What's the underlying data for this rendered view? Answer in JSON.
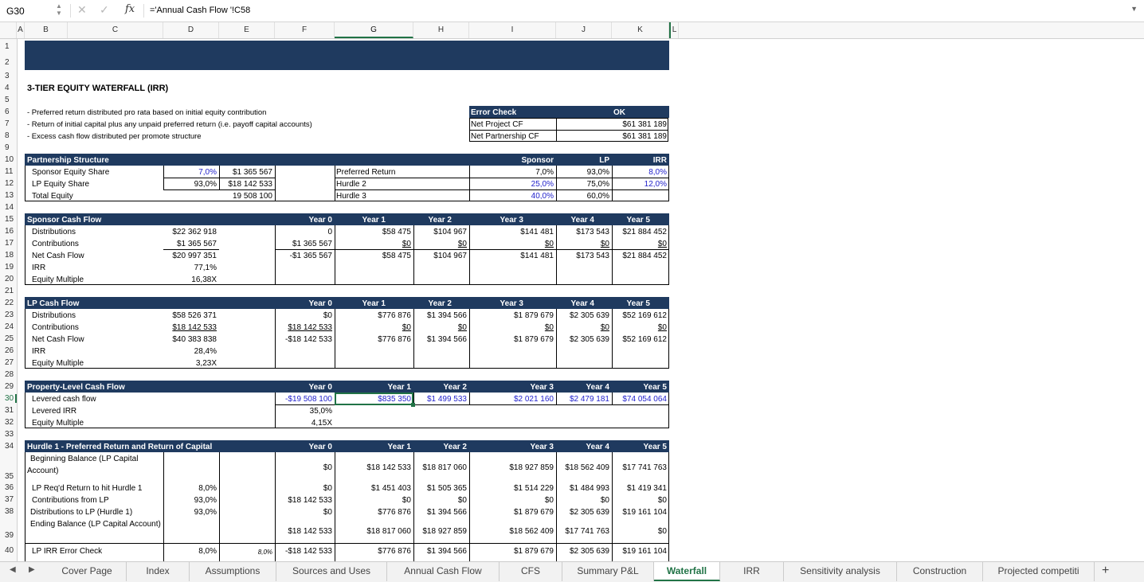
{
  "formula_bar": {
    "cell_ref": "G30",
    "formula": "='Annual Cash Flow '!C58"
  },
  "columns": [
    "A",
    "B",
    "C",
    "D",
    "E",
    "F",
    "G",
    "H",
    "I",
    "J",
    "K",
    "L"
  ],
  "rows": [
    "1",
    "2",
    "3",
    "4",
    "5",
    "6",
    "7",
    "8",
    "9",
    "10",
    "11",
    "12",
    "13",
    "14",
    "15",
    "16",
    "17",
    "18",
    "19",
    "20",
    "21",
    "22",
    "23",
    "24",
    "25",
    "26",
    "27",
    "28",
    "29",
    "30",
    "31",
    "32",
    "33",
    "34",
    "35",
    "36",
    "37",
    "38",
    "39",
    "40"
  ],
  "sheet": {
    "title": "3-TIER EQUITY WATERFALL (IRR)",
    "notes": [
      "- Preferred return distributed pro rata based on initial equity contribution",
      "- Return of initial capital plus any unpaid preferred return (i.e. payoff capital accounts)",
      "- Excess cash flow distributed per promote structure"
    ],
    "error_check": {
      "label": "Error Check",
      "status": "OK",
      "r1_label": "Net Project CF",
      "r1_value": "$61 381 189",
      "r2_label": "Net Partnership CF",
      "r2_value": "$61 381 189"
    },
    "partnership": {
      "title": "Partnership Structure",
      "sponsor_label": "Sponsor Equity Share",
      "sponsor_pct": "7,0%",
      "sponsor_amt": "$1 365 567",
      "lp_label": "LP Equity Share",
      "lp_pct": "93,0%",
      "lp_amt": "$18 142 533",
      "total_label": "Total Equity",
      "total_amt": "19 508 100",
      "h_sponsor": "Sponsor",
      "h_lp": "LP",
      "h_irr": "IRR",
      "tiers": [
        {
          "label": "Preferred Return",
          "sponsor": "7,0%",
          "lp": "93,0%",
          "irr": "8,0%"
        },
        {
          "label": "Hurdle 2",
          "sponsor": "25,0%",
          "lp": "75,0%",
          "irr": "12,0%"
        },
        {
          "label": "Hurdle 3",
          "sponsor": "40,0%",
          "lp": "60,0%",
          "irr": ""
        }
      ]
    },
    "years": [
      "Year 0",
      "Year 1",
      "Year 2",
      "Year 3",
      "Year 4",
      "Year 5"
    ],
    "sponsor_cf": {
      "title": "Sponsor Cash Flow",
      "dist": {
        "label": "Distributions",
        "total": "$22 362 918",
        "vals": [
          "0",
          "$58 475",
          "$104 967",
          "$141 481",
          "$173 543",
          "$21 884 452"
        ]
      },
      "contrib": {
        "label": "Contributions",
        "total": "$1 365 567",
        "vals": [
          "$1 365 567",
          "$0",
          "$0",
          "$0",
          "$0",
          "$0"
        ]
      },
      "net": {
        "label": "Net Cash Flow",
        "total": "$20 997 351",
        "vals": [
          "-$1 365 567",
          "$58 475",
          "$104 967",
          "$141 481",
          "$173 543",
          "$21 884 452"
        ]
      },
      "irr_label": "IRR",
      "irr": "77,1%",
      "em_label": "Equity Multiple",
      "em": "16,38X"
    },
    "lp_cf": {
      "title": "LP Cash Flow",
      "dist": {
        "label": "Distributions",
        "total": "$58 526 371",
        "vals": [
          "$0",
          "$776 876",
          "$1 394 566",
          "$1 879 679",
          "$2 305 639",
          "$52 169 612"
        ]
      },
      "contrib": {
        "label": "Contributions",
        "total": "$18 142 533",
        "vals": [
          "$18 142 533",
          "$0",
          "$0",
          "$0",
          "$0",
          "$0"
        ]
      },
      "net": {
        "label": "Net Cash Flow",
        "total": "$40 383 838",
        "vals": [
          "-$18 142 533",
          "$776 876",
          "$1 394 566",
          "$1 879 679",
          "$2 305 639",
          "$52 169 612"
        ]
      },
      "irr_label": "IRR",
      "irr": "28,4%",
      "em_label": "Equity Multiple",
      "em": "3,23X"
    },
    "property_cf": {
      "title": "Property-Level Cash Flow",
      "levered_label": "Levered cash flow",
      "levered": [
        "-$19 508 100",
        "$835 350",
        "$1 499 533",
        "$2 021 160",
        "$2 479 181",
        "$74 054 064"
      ],
      "irr_label": "Levered IRR",
      "irr": "35,0%",
      "em_label": "Equity Multiple",
      "em": "4,15X"
    },
    "hurdle1": {
      "title": "Hurdle 1 - Preferred Return and Return of Capital",
      "beg_label_1": "Beginning Balance (LP Capital",
      "beg_label_2": "Account)",
      "beg": [
        "$0",
        "$18 142 533",
        "$18 817 060",
        "$18 927 859",
        "$18 562 409",
        "$17 741 763"
      ],
      "req_label": "LP Req'd Return to hit Hurdle 1",
      "req_pct": "8,0%",
      "req": [
        "$0",
        "$1 451 403",
        "$1 505 365",
        "$1 514 229",
        "$1 484 993",
        "$1 419 341"
      ],
      "contrib_label": "Contributions from LP",
      "contrib_pct": "93,0%",
      "contrib": [
        "$18 142 533",
        "$0",
        "$0",
        "$0",
        "$0",
        "$0"
      ],
      "dist_label": "Distributions to LP (Hurdle 1)",
      "dist_pct": "93,0%",
      "dist": [
        "$0",
        "$776 876",
        "$1 394 566",
        "$1 879 679",
        "$2 305 639",
        "$19 161 104"
      ],
      "end_label": "Ending Balance (LP Capital Account)",
      "end": [
        "$18 142 533",
        "$18 817 060",
        "$18 927 859",
        "$18 562 409",
        "$17 741 763",
        "$0"
      ],
      "chk_label": "LP IRR Error Check",
      "chk_pct": "8,0%",
      "chk_pct2": "8,0%",
      "chk": [
        "-$18 142 533",
        "$776 876",
        "$1 394 566",
        "$1 879 679",
        "$2 305 639",
        "$19 161 104"
      ]
    }
  },
  "tabs": [
    "Cover Page",
    "Index",
    "Assumptions",
    "Sources and Uses",
    "Annual Cash Flow",
    "CFS",
    "Summary P&L",
    "Waterfall",
    "IRR",
    "Sensitivity analysis",
    "Construction",
    "Projected competiti"
  ],
  "active_tab": "Waterfall",
  "icons": {
    "cancel": "x-icon",
    "confirm": "check-icon",
    "function": "fx-icon",
    "add_sheet": "plus-icon"
  },
  "colors": {
    "header_bar": "#1f3a5f",
    "input_blue": "#2222cc",
    "accent_green": "#217346"
  }
}
